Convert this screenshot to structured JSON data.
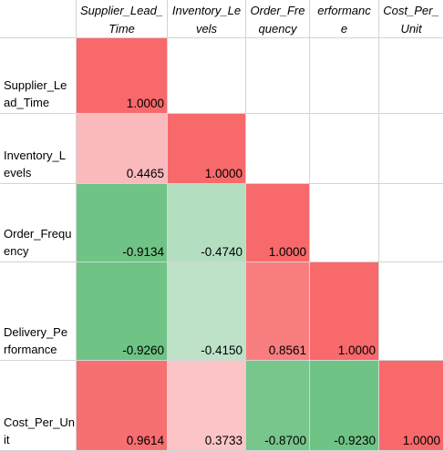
{
  "columns": [
    {
      "key": "Supplier_Lead_Time",
      "lines": [
        "Supplier_Lead_",
        "Time"
      ]
    },
    {
      "key": "Inventory_Levels",
      "lines": [
        "Inventory_Le",
        "vels"
      ]
    },
    {
      "key": "Order_Frequency",
      "lines": [
        "Order_Fre",
        "quency"
      ]
    },
    {
      "key": "Delivery_Performance",
      "lines": [
        "erformanc",
        "e"
      ]
    },
    {
      "key": "Cost_Per_Unit",
      "lines": [
        "Cost_Per_",
        "Unit"
      ]
    }
  ],
  "rows": [
    {
      "lines": [
        "Supplier_Le",
        "ad_Time"
      ],
      "values": [
        "1.0000",
        "",
        "",
        "",
        ""
      ]
    },
    {
      "lines": [
        "Inventory_L",
        "evels"
      ],
      "values": [
        "0.4465",
        "1.0000",
        "",
        "",
        ""
      ]
    },
    {
      "lines": [
        "Order_Frequ",
        "ency"
      ],
      "values": [
        "-0.9134",
        "-0.4740",
        "1.0000",
        "",
        ""
      ]
    },
    {
      "lines": [
        "Delivery_Pe",
        "rformance"
      ],
      "values": [
        "-0.9260",
        "-0.4150",
        "0.8561",
        "1.0000",
        ""
      ]
    },
    {
      "lines": [
        "Cost_Per_Un",
        "it"
      ],
      "values": [
        "0.9614",
        "0.3733",
        "-0.8700",
        "-0.9230",
        "1.0000"
      ]
    }
  ],
  "colors": {
    "positive_max": "#f8696b",
    "neutral": "#fcfcff",
    "negative_max": "#63be7b",
    "gridline": "#d4d4d4"
  }
}
